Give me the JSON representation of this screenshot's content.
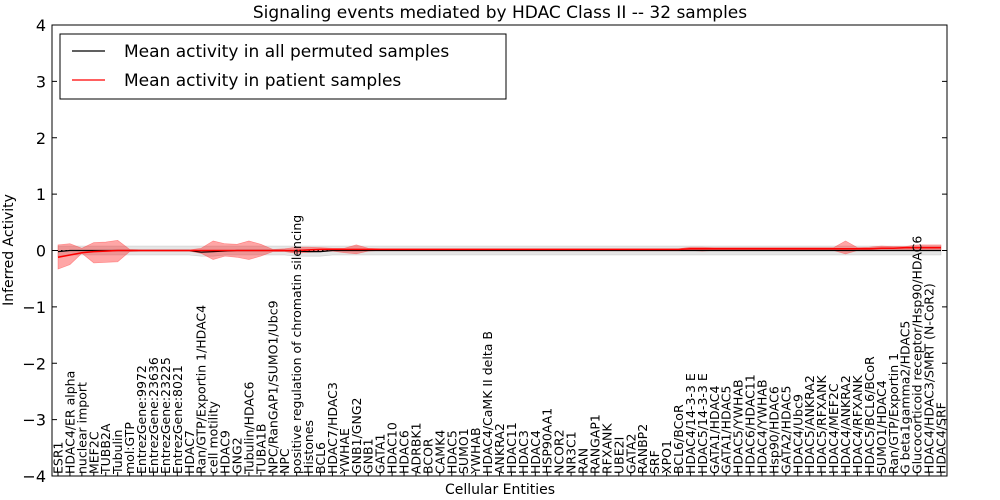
{
  "chart_data": {
    "type": "line",
    "title": "Signaling events mediated by HDAC Class II -- 32 samples",
    "xlabel": "Cellular Entities",
    "ylabel": "Inferred Activity",
    "ylim": [
      -4,
      4
    ],
    "yticks": [
      -4,
      -3,
      -2,
      -1,
      0,
      1,
      2,
      3,
      4
    ],
    "ytick_labels": [
      "−4",
      "−3",
      "−2",
      "−1",
      "0",
      "1",
      "2",
      "3",
      "4"
    ],
    "grid": false,
    "legend": {
      "placement": "top-left",
      "entries": [
        {
          "label": "Mean activity in all permuted samples",
          "color": "#000000"
        },
        {
          "label": "Mean activity in patient samples",
          "color": "#ff0000"
        }
      ]
    },
    "categories": [
      "ESR1",
      "HDAC4/ER alpha",
      "nuclear import",
      "MEF2C",
      "TUBB2A",
      "Tubulin",
      "mol:GTP",
      "EntrezGene:9972",
      "EntrezGene:23636",
      "EntrezGene:23225",
      "EntrezGene:8021",
      "HDAC7",
      "Ran/GTP/Exportin 1/HDAC4",
      "cell motility",
      "HDAC9",
      "GNG2",
      "Tubulin/HDAC6",
      "TUBA1B",
      "NPC/RanGAP1/SUMO1/Ubc9",
      "NPC",
      "positive regulation of chromatin silencing",
      "Histones",
      "BCL6",
      "HDAC7/HDAC3",
      "YWHAE",
      "GNB1/GNG2",
      "GNB1",
      "GATA1",
      "HDAC10",
      "HDAC6",
      "ADRBK1",
      "BCOR",
      "CAMK4",
      "HDAC5",
      "SUMO1",
      "YWHAB",
      "HDAC4/CaMK II delta B",
      "ANKRA2",
      "HDAC11",
      "HDAC3",
      "HDAC4",
      "HSP90AA1",
      "NCOR2",
      "NR3C1",
      "RAN",
      "RANGAP1",
      "RFXANK",
      "UBE2I",
      "GATA2",
      "RANBP2",
      "SRF",
      "XPO1",
      "BCL6/BCoR",
      "HDAC4/14-3-3 E",
      "HDAC5/14-3-3 E",
      "GATA1/HDAC4",
      "GATA1/HDAC5",
      "HDAC5/YWHAB",
      "HDAC6/HDAC11",
      "HDAC4/YWHAB",
      "Hsp90/HDAC6",
      "GATA2/HDAC5",
      "HDAC4/Ubc9",
      "HDAC5/ANKRA2",
      "HDAC5/RFXANK",
      "HDAC4/MEF2C",
      "HDAC4/ANKRA2",
      "HDAC4/RFXANK",
      "HDAC5/BCL6/BCoR",
      "SUMO1/HDAC4",
      "Ran/GTP/Exportin 1",
      "G beta1gamma2/HDAC5",
      "Glucocorticoid receptor/Hsp90/HDAC6",
      "HDAC4/HDAC3/SMRT (N-CoR2)",
      "HDAC4/SRF"
    ],
    "series": [
      {
        "name": "Mean activity in all permuted samples",
        "color": "#000000",
        "values": [
          -0.02,
          0.0,
          0.0,
          0.0,
          0.0,
          0.0,
          0.0,
          0.0,
          0.0,
          0.0,
          0.0,
          0.0,
          -0.03,
          -0.02,
          -0.01,
          0.0,
          0.0,
          0.0,
          0.0,
          0.0,
          -0.01,
          -0.02,
          -0.02,
          0.0,
          0.0,
          0.0,
          0.0,
          0.0,
          0.0,
          0.0,
          0.0,
          0.0,
          0.0,
          0.0,
          0.0,
          0.0,
          0.0,
          0.0,
          0.0,
          0.0,
          0.0,
          0.0,
          0.0,
          0.0,
          0.0,
          0.0,
          0.0,
          0.0,
          0.0,
          0.0,
          0.0,
          0.0,
          0.0,
          0.0,
          0.0,
          0.0,
          0.0,
          0.0,
          0.0,
          0.0,
          0.0,
          0.0,
          0.0,
          0.0,
          0.0,
          0.0,
          0.0,
          0.0,
          0.0,
          0.0,
          0.0,
          0.0,
          0.0,
          0.0,
          0.0
        ],
        "band_low": [
          -0.1,
          -0.08,
          -0.08,
          -0.08,
          -0.08,
          -0.08,
          -0.08,
          -0.08,
          -0.08,
          -0.08,
          -0.08,
          -0.08,
          -0.1,
          -0.1,
          -0.08,
          -0.08,
          -0.08,
          -0.08,
          -0.08,
          -0.08,
          -0.1,
          -0.1,
          -0.1,
          -0.08,
          -0.08,
          -0.08,
          -0.08,
          -0.08,
          -0.08,
          -0.08,
          -0.08,
          -0.08,
          -0.08,
          -0.08,
          -0.08,
          -0.08,
          -0.08,
          -0.08,
          -0.08,
          -0.08,
          -0.08,
          -0.08,
          -0.08,
          -0.08,
          -0.08,
          -0.08,
          -0.08,
          -0.08,
          -0.08,
          -0.08,
          -0.08,
          -0.08,
          -0.08,
          -0.08,
          -0.08,
          -0.08,
          -0.08,
          -0.08,
          -0.08,
          -0.08,
          -0.08,
          -0.08,
          -0.08,
          -0.08,
          -0.08,
          -0.08,
          -0.08,
          -0.08,
          -0.08,
          -0.08,
          -0.08,
          -0.08,
          -0.08,
          -0.08,
          -0.08
        ],
        "band_high": [
          0.08,
          0.08,
          0.08,
          0.08,
          0.08,
          0.08,
          0.08,
          0.08,
          0.08,
          0.08,
          0.08,
          0.08,
          0.08,
          0.08,
          0.08,
          0.08,
          0.08,
          0.08,
          0.08,
          0.08,
          0.08,
          0.08,
          0.08,
          0.08,
          0.08,
          0.08,
          0.08,
          0.08,
          0.08,
          0.08,
          0.08,
          0.08,
          0.08,
          0.08,
          0.08,
          0.08,
          0.08,
          0.08,
          0.08,
          0.08,
          0.08,
          0.08,
          0.08,
          0.08,
          0.08,
          0.08,
          0.08,
          0.08,
          0.08,
          0.08,
          0.08,
          0.08,
          0.08,
          0.08,
          0.08,
          0.08,
          0.08,
          0.08,
          0.08,
          0.08,
          0.08,
          0.08,
          0.08,
          0.08,
          0.08,
          0.08,
          0.08,
          0.08,
          0.08,
          0.08,
          0.08,
          0.08,
          0.08,
          0.08,
          0.08
        ]
      },
      {
        "name": "Mean activity in patient samples",
        "color": "#ff0000",
        "values": [
          -0.12,
          -0.08,
          -0.04,
          -0.02,
          -0.01,
          0.0,
          0.0,
          0.0,
          0.0,
          0.0,
          0.0,
          0.0,
          0.0,
          0.0,
          0.0,
          0.0,
          0.0,
          0.0,
          0.0,
          0.0,
          0.0,
          0.01,
          0.02,
          0.02,
          0.02,
          0.02,
          0.02,
          0.02,
          0.02,
          0.02,
          0.02,
          0.02,
          0.02,
          0.02,
          0.02,
          0.02,
          0.02,
          0.02,
          0.02,
          0.02,
          0.02,
          0.02,
          0.02,
          0.02,
          0.02,
          0.02,
          0.02,
          0.02,
          0.02,
          0.02,
          0.02,
          0.02,
          0.02,
          0.03,
          0.03,
          0.03,
          0.03,
          0.03,
          0.03,
          0.03,
          0.03,
          0.03,
          0.03,
          0.03,
          0.03,
          0.03,
          0.03,
          0.03,
          0.03,
          0.04,
          0.04,
          0.05,
          0.05,
          0.05,
          0.05
        ],
        "band_low": [
          -0.33,
          -0.25,
          -0.05,
          -0.22,
          -0.21,
          -0.2,
          -0.02,
          -0.01,
          -0.01,
          -0.01,
          -0.01,
          -0.01,
          -0.05,
          -0.16,
          -0.1,
          -0.12,
          -0.16,
          -0.1,
          -0.02,
          -0.02,
          -0.05,
          -0.03,
          -0.02,
          -0.01,
          -0.04,
          -0.06,
          -0.01,
          0.0,
          0.0,
          0.0,
          0.0,
          0.0,
          0.0,
          0.0,
          0.0,
          0.0,
          0.0,
          0.0,
          0.0,
          0.0,
          0.0,
          0.0,
          0.0,
          0.0,
          0.0,
          0.0,
          0.0,
          0.0,
          0.0,
          0.0,
          0.0,
          0.0,
          0.0,
          0.0,
          -0.01,
          0.0,
          0.0,
          0.0,
          0.0,
          0.0,
          0.0,
          0.0,
          0.0,
          0.0,
          0.0,
          0.0,
          -0.06,
          0.0,
          0.0,
          0.0,
          0.0,
          0.0,
          0.0,
          0.0,
          0.0
        ],
        "band_high": [
          0.1,
          0.12,
          0.04,
          0.14,
          0.15,
          0.18,
          0.02,
          0.01,
          0.01,
          0.01,
          0.01,
          0.01,
          0.04,
          0.17,
          0.12,
          0.11,
          0.17,
          0.11,
          0.02,
          0.03,
          0.06,
          0.06,
          0.05,
          0.04,
          0.04,
          0.1,
          0.04,
          0.03,
          0.03,
          0.03,
          0.03,
          0.03,
          0.03,
          0.03,
          0.03,
          0.03,
          0.03,
          0.03,
          0.03,
          0.03,
          0.03,
          0.03,
          0.03,
          0.03,
          0.03,
          0.03,
          0.03,
          0.03,
          0.03,
          0.03,
          0.03,
          0.03,
          0.03,
          0.06,
          0.06,
          0.05,
          0.05,
          0.05,
          0.05,
          0.05,
          0.05,
          0.05,
          0.05,
          0.05,
          0.05,
          0.05,
          0.17,
          0.05,
          0.06,
          0.08,
          0.07,
          0.07,
          0.1,
          0.1,
          0.1
        ]
      }
    ]
  }
}
